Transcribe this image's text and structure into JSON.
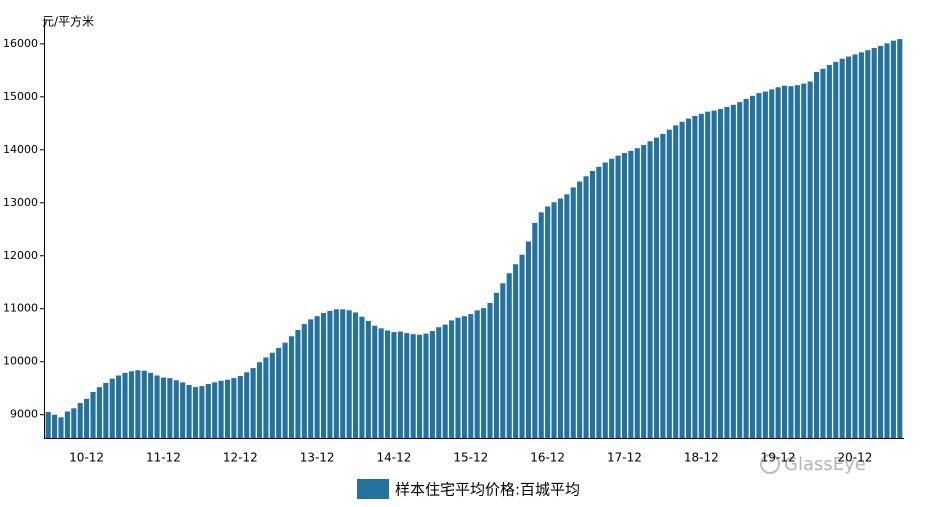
{
  "chart_data": {
    "type": "bar",
    "y_label": "元/平方米",
    "watermark": "GlassEye",
    "color": "#25729f",
    "ylim": [
      8560,
      16450
    ],
    "yticks": [
      9000,
      10000,
      11000,
      12000,
      13000,
      14000,
      15000,
      16000
    ],
    "categories": [
      null,
      null,
      null,
      null,
      null,
      null,
      "10-12",
      null,
      null,
      null,
      null,
      null,
      null,
      null,
      null,
      null,
      null,
      null,
      "11-12",
      null,
      null,
      null,
      null,
      null,
      null,
      null,
      null,
      null,
      null,
      null,
      "12-12",
      null,
      null,
      null,
      null,
      null,
      null,
      null,
      null,
      null,
      null,
      null,
      "13-12",
      null,
      null,
      null,
      null,
      null,
      null,
      null,
      null,
      null,
      null,
      null,
      "14-12",
      null,
      null,
      null,
      null,
      null,
      null,
      null,
      null,
      null,
      null,
      null,
      "15-12",
      null,
      null,
      null,
      null,
      null,
      null,
      null,
      null,
      null,
      null,
      null,
      "16-12",
      null,
      null,
      null,
      null,
      null,
      null,
      null,
      null,
      null,
      null,
      null,
      "17-12",
      null,
      null,
      null,
      null,
      null,
      null,
      null,
      null,
      null,
      null,
      null,
      "18-12",
      null,
      null,
      null,
      null,
      null,
      null,
      null,
      null,
      null,
      null,
      null,
      "19-12",
      null,
      null,
      null,
      null,
      null,
      null,
      null,
      null,
      null,
      null,
      null,
      "20-12",
      null,
      null,
      null,
      null,
      null,
      null,
      null
    ],
    "series": [
      {
        "name": "样本住宅平均价格:百城平均",
        "color": "#25729f",
        "values": [
          9050,
          9000,
          8950,
          9060,
          9120,
          9220,
          9300,
          9430,
          9520,
          9600,
          9680,
          9740,
          9790,
          9820,
          9840,
          9830,
          9790,
          9740,
          9700,
          9690,
          9650,
          9610,
          9560,
          9520,
          9540,
          9580,
          9610,
          9640,
          9660,
          9690,
          9730,
          9800,
          9880,
          9990,
          10080,
          10170,
          10260,
          10360,
          10480,
          10600,
          10710,
          10800,
          10860,
          10920,
          10960,
          10990,
          10990,
          10970,
          10930,
          10850,
          10770,
          10680,
          10630,
          10590,
          10560,
          10570,
          10540,
          10520,
          10510,
          10530,
          10580,
          10650,
          10700,
          10780,
          10830,
          10860,
          10900,
          10970,
          11010,
          11110,
          11300,
          11480,
          11670,
          11840,
          12020,
          12270,
          12620,
          12820,
          12930,
          13010,
          13080,
          13160,
          13290,
          13400,
          13500,
          13600,
          13680,
          13760,
          13830,
          13890,
          13940,
          13980,
          14030,
          14090,
          14160,
          14230,
          14300,
          14380,
          14460,
          14530,
          14590,
          14640,
          14680,
          14720,
          14740,
          14770,
          14810,
          14850,
          14900,
          14960,
          15020,
          15070,
          15100,
          15140,
          15180,
          15210,
          15200,
          15220,
          15250,
          15290,
          15470,
          15530,
          15600,
          15660,
          15720,
          15760,
          15800,
          15840,
          15880,
          15920,
          15960,
          16010,
          16060,
          16090
        ]
      }
    ]
  }
}
